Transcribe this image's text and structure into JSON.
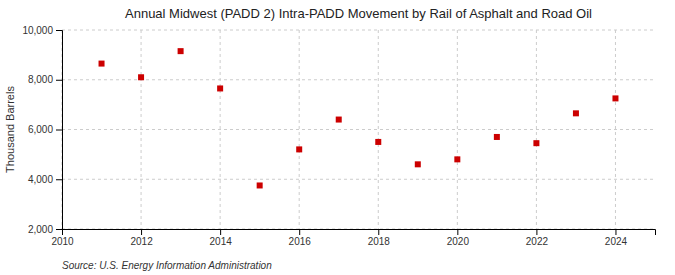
{
  "chart_data": {
    "type": "scatter",
    "title": "Annual Midwest (PADD 2) Intra-PADD Movement by Rail of Asphalt and Road Oil",
    "ylabel": "Thousand Barrels",
    "annotation": "Source: U.S. Energy Information Administration",
    "x": [
      2011,
      2012,
      2013,
      2014,
      2015,
      2016,
      2017,
      2018,
      2019,
      2020,
      2021,
      2022,
      2023,
      2024
    ],
    "values": [
      8650,
      8100,
      9150,
      7650,
      3750,
      5200,
      6400,
      5500,
      4600,
      4800,
      5700,
      5450,
      6650,
      7250
    ],
    "color": "#CC0000",
    "marker": "square",
    "xlim": [
      2010,
      2025
    ],
    "ylim": [
      2000,
      10000
    ],
    "xticks": [
      2010,
      2012,
      2014,
      2016,
      2018,
      2020,
      2022,
      2024
    ],
    "yticks": [
      {
        "value": 2000,
        "label": "2,000"
      },
      {
        "value": 4000,
        "label": "4,000"
      },
      {
        "value": 6000,
        "label": "6,000"
      },
      {
        "value": 8000,
        "label": "8,000"
      },
      {
        "value": 10000,
        "label": "10,000"
      }
    ],
    "grid": true
  }
}
